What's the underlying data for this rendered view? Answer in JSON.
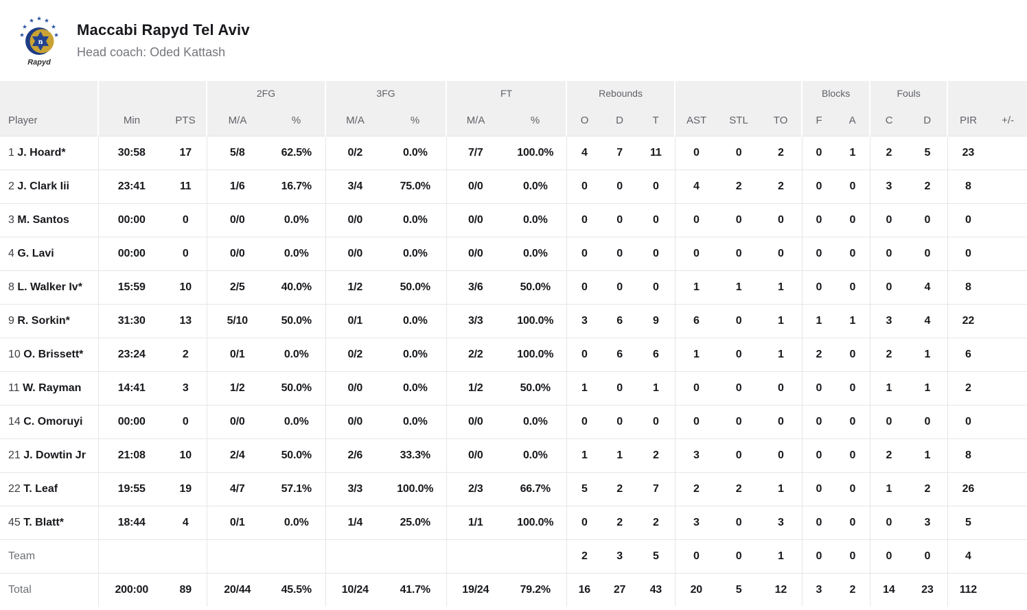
{
  "team": {
    "name": "Maccabi Rapyd Tel Aviv",
    "coach_line": "Head coach: Oded Kattash",
    "logo_text": "Rapyd"
  },
  "colors": {
    "header_bg": "#f0f0f1",
    "row_border": "#e6e6e7",
    "text_dark": "#17181c",
    "text_gray": "#75767b",
    "logo_gold": "#c9a233",
    "logo_blue": "#24438f"
  },
  "table": {
    "groups": {
      "fg2": "2FG",
      "fg3": "3FG",
      "ft": "FT",
      "rebounds": "Rebounds",
      "blocks": "Blocks",
      "fouls": "Fouls"
    },
    "columns": {
      "player": "Player",
      "min": "Min",
      "pts": "PTS",
      "ma": "M/A",
      "pct": "%",
      "reb_o": "O",
      "reb_d": "D",
      "reb_t": "T",
      "ast": "AST",
      "stl": "STL",
      "to": "TO",
      "blk_f": "F",
      "blk_a": "A",
      "foul_c": "C",
      "foul_d": "D",
      "pir": "PIR",
      "pm": "+/-"
    },
    "rows": [
      {
        "number": "1",
        "name": "J. Hoard*",
        "min": "30:58",
        "pts": "17",
        "fg2": "5/8",
        "fg2pct": "62.5%",
        "fg3": "0/2",
        "fg3pct": "0.0%",
        "ft": "7/7",
        "ftpct": "100.0%",
        "reb_o": "4",
        "reb_d": "7",
        "reb_t": "11",
        "ast": "0",
        "stl": "0",
        "to": "2",
        "blk_f": "0",
        "blk_a": "1",
        "foul_c": "2",
        "foul_d": "5",
        "pir": "23",
        "pm": ""
      },
      {
        "number": "2",
        "name": "J. Clark Iii",
        "min": "23:41",
        "pts": "11",
        "fg2": "1/6",
        "fg2pct": "16.7%",
        "fg3": "3/4",
        "fg3pct": "75.0%",
        "ft": "0/0",
        "ftpct": "0.0%",
        "reb_o": "0",
        "reb_d": "0",
        "reb_t": "0",
        "ast": "4",
        "stl": "2",
        "to": "2",
        "blk_f": "0",
        "blk_a": "0",
        "foul_c": "3",
        "foul_d": "2",
        "pir": "8",
        "pm": ""
      },
      {
        "number": "3",
        "name": "M. Santos",
        "min": "00:00",
        "pts": "0",
        "fg2": "0/0",
        "fg2pct": "0.0%",
        "fg3": "0/0",
        "fg3pct": "0.0%",
        "ft": "0/0",
        "ftpct": "0.0%",
        "reb_o": "0",
        "reb_d": "0",
        "reb_t": "0",
        "ast": "0",
        "stl": "0",
        "to": "0",
        "blk_f": "0",
        "blk_a": "0",
        "foul_c": "0",
        "foul_d": "0",
        "pir": "0",
        "pm": ""
      },
      {
        "number": "4",
        "name": "G. Lavi",
        "min": "00:00",
        "pts": "0",
        "fg2": "0/0",
        "fg2pct": "0.0%",
        "fg3": "0/0",
        "fg3pct": "0.0%",
        "ft": "0/0",
        "ftpct": "0.0%",
        "reb_o": "0",
        "reb_d": "0",
        "reb_t": "0",
        "ast": "0",
        "stl": "0",
        "to": "0",
        "blk_f": "0",
        "blk_a": "0",
        "foul_c": "0",
        "foul_d": "0",
        "pir": "0",
        "pm": ""
      },
      {
        "number": "8",
        "name": "L. Walker Iv*",
        "min": "15:59",
        "pts": "10",
        "fg2": "2/5",
        "fg2pct": "40.0%",
        "fg3": "1/2",
        "fg3pct": "50.0%",
        "ft": "3/6",
        "ftpct": "50.0%",
        "reb_o": "0",
        "reb_d": "0",
        "reb_t": "0",
        "ast": "1",
        "stl": "1",
        "to": "1",
        "blk_f": "0",
        "blk_a": "0",
        "foul_c": "0",
        "foul_d": "4",
        "pir": "8",
        "pm": ""
      },
      {
        "number": "9",
        "name": "R. Sorkin*",
        "min": "31:30",
        "pts": "13",
        "fg2": "5/10",
        "fg2pct": "50.0%",
        "fg3": "0/1",
        "fg3pct": "0.0%",
        "ft": "3/3",
        "ftpct": "100.0%",
        "reb_o": "3",
        "reb_d": "6",
        "reb_t": "9",
        "ast": "6",
        "stl": "0",
        "to": "1",
        "blk_f": "1",
        "blk_a": "1",
        "foul_c": "3",
        "foul_d": "4",
        "pir": "22",
        "pm": ""
      },
      {
        "number": "10",
        "name": "O. Brissett*",
        "min": "23:24",
        "pts": "2",
        "fg2": "0/1",
        "fg2pct": "0.0%",
        "fg3": "0/2",
        "fg3pct": "0.0%",
        "ft": "2/2",
        "ftpct": "100.0%",
        "reb_o": "0",
        "reb_d": "6",
        "reb_t": "6",
        "ast": "1",
        "stl": "0",
        "to": "1",
        "blk_f": "2",
        "blk_a": "0",
        "foul_c": "2",
        "foul_d": "1",
        "pir": "6",
        "pm": ""
      },
      {
        "number": "11",
        "name": "W. Rayman",
        "min": "14:41",
        "pts": "3",
        "fg2": "1/2",
        "fg2pct": "50.0%",
        "fg3": "0/0",
        "fg3pct": "0.0%",
        "ft": "1/2",
        "ftpct": "50.0%",
        "reb_o": "1",
        "reb_d": "0",
        "reb_t": "1",
        "ast": "0",
        "stl": "0",
        "to": "0",
        "blk_f": "0",
        "blk_a": "0",
        "foul_c": "1",
        "foul_d": "1",
        "pir": "2",
        "pm": ""
      },
      {
        "number": "14",
        "name": "C. Omoruyi",
        "min": "00:00",
        "pts": "0",
        "fg2": "0/0",
        "fg2pct": "0.0%",
        "fg3": "0/0",
        "fg3pct": "0.0%",
        "ft": "0/0",
        "ftpct": "0.0%",
        "reb_o": "0",
        "reb_d": "0",
        "reb_t": "0",
        "ast": "0",
        "stl": "0",
        "to": "0",
        "blk_f": "0",
        "blk_a": "0",
        "foul_c": "0",
        "foul_d": "0",
        "pir": "0",
        "pm": ""
      },
      {
        "number": "21",
        "name": "J. Dowtin Jr",
        "min": "21:08",
        "pts": "10",
        "fg2": "2/4",
        "fg2pct": "50.0%",
        "fg3": "2/6",
        "fg3pct": "33.3%",
        "ft": "0/0",
        "ftpct": "0.0%",
        "reb_o": "1",
        "reb_d": "1",
        "reb_t": "2",
        "ast": "3",
        "stl": "0",
        "to": "0",
        "blk_f": "0",
        "blk_a": "0",
        "foul_c": "2",
        "foul_d": "1",
        "pir": "8",
        "pm": ""
      },
      {
        "number": "22",
        "name": "T. Leaf",
        "min": "19:55",
        "pts": "19",
        "fg2": "4/7",
        "fg2pct": "57.1%",
        "fg3": "3/3",
        "fg3pct": "100.0%",
        "ft": "2/3",
        "ftpct": "66.7%",
        "reb_o": "5",
        "reb_d": "2",
        "reb_t": "7",
        "ast": "2",
        "stl": "2",
        "to": "1",
        "blk_f": "0",
        "blk_a": "0",
        "foul_c": "1",
        "foul_d": "2",
        "pir": "26",
        "pm": ""
      },
      {
        "number": "45",
        "name": "T. Blatt*",
        "min": "18:44",
        "pts": "4",
        "fg2": "0/1",
        "fg2pct": "0.0%",
        "fg3": "1/4",
        "fg3pct": "25.0%",
        "ft": "1/1",
        "ftpct": "100.0%",
        "reb_o": "0",
        "reb_d": "2",
        "reb_t": "2",
        "ast": "3",
        "stl": "0",
        "to": "3",
        "blk_f": "0",
        "blk_a": "0",
        "foul_c": "0",
        "foul_d": "3",
        "pir": "5",
        "pm": ""
      }
    ],
    "team_row": {
      "label": "Team",
      "min": "",
      "pts": "",
      "fg2": "",
      "fg2pct": "",
      "fg3": "",
      "fg3pct": "",
      "ft": "",
      "ftpct": "",
      "reb_o": "2",
      "reb_d": "3",
      "reb_t": "5",
      "ast": "0",
      "stl": "0",
      "to": "1",
      "blk_f": "0",
      "blk_a": "0",
      "foul_c": "0",
      "foul_d": "0",
      "pir": "4",
      "pm": ""
    },
    "total_row": {
      "label": "Total",
      "min": "200:00",
      "pts": "89",
      "fg2": "20/44",
      "fg2pct": "45.5%",
      "fg3": "10/24",
      "fg3pct": "41.7%",
      "ft": "19/24",
      "ftpct": "79.2%",
      "reb_o": "16",
      "reb_d": "27",
      "reb_t": "43",
      "ast": "20",
      "stl": "5",
      "to": "12",
      "blk_f": "3",
      "blk_a": "2",
      "foul_c": "14",
      "foul_d": "23",
      "pir": "112",
      "pm": ""
    }
  }
}
